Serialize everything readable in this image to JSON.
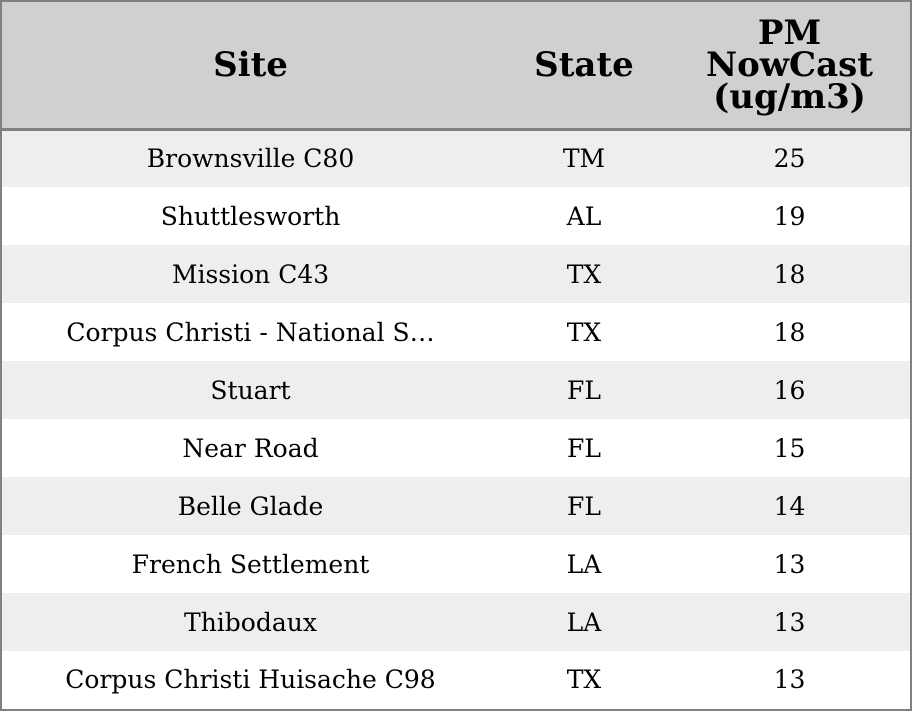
{
  "chart_data": {
    "type": "table",
    "columns": [
      "Site",
      "State",
      "PM NowCast (ug/m3)"
    ],
    "rows": [
      {
        "site": "Brownsville C80",
        "state": "TM",
        "pm": 25
      },
      {
        "site": "Shuttlesworth",
        "state": "AL",
        "pm": 19
      },
      {
        "site": "Mission C43",
        "state": "TX",
        "pm": 18
      },
      {
        "site": "Corpus Christi - National S…",
        "state": "TX",
        "pm": 18
      },
      {
        "site": "Stuart",
        "state": "FL",
        "pm": 16
      },
      {
        "site": "Near Road",
        "state": "FL",
        "pm": 15
      },
      {
        "site": "Belle Glade",
        "state": "FL",
        "pm": 14
      },
      {
        "site": "French Settlement",
        "state": "LA",
        "pm": 13
      },
      {
        "site": "Thibodaux",
        "state": "LA",
        "pm": 13
      },
      {
        "site": "Corpus Christi Huisache C98",
        "state": "TX",
        "pm": 13
      }
    ]
  },
  "colors": {
    "header_bg": "#d0d0d0",
    "row_alt_bg": "#eeeeee",
    "row_bg": "#ffffff",
    "border": "#808080"
  }
}
